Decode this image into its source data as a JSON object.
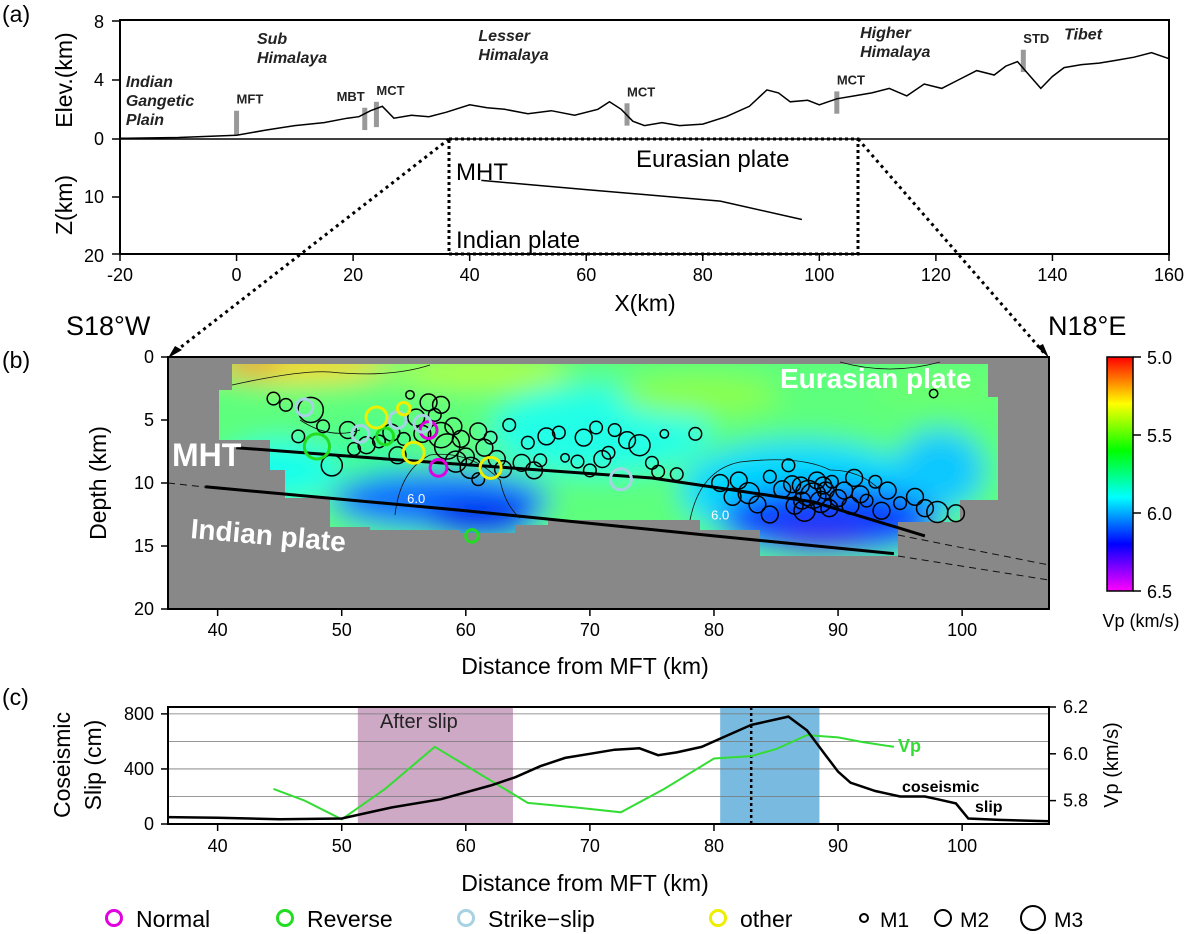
{
  "panel_labels": [
    "(a)",
    "(b)",
    "(c)"
  ],
  "direction": {
    "left": "S18°W",
    "right": "N18°E"
  },
  "chart_data": [
    {
      "type": "line",
      "panel": "(a)",
      "xlabel": "X(km)",
      "ylabel_top": "Elev.(km)",
      "ylabel_bottom": "Z(km)",
      "xlim": [
        -20,
        160
      ],
      "xticks": [
        -20,
        0,
        20,
        40,
        60,
        80,
        100,
        120,
        140,
        160
      ],
      "elev_ylim": [
        0,
        8
      ],
      "elev_yticks": [
        "8",
        "4",
        "0"
      ],
      "depth_ylim": [
        0,
        20
      ],
      "depth_yticks": [
        "10",
        "20"
      ],
      "regions": [
        {
          "lines": [
            "Indian",
            "Gangetic",
            "Plain"
          ],
          "x": -19,
          "elev": 3.5
        },
        {
          "lines": [
            "Sub",
            "Himalaya"
          ],
          "x": 3.5,
          "elev": 6.4
        },
        {
          "lines": [
            "Lesser",
            "Himalaya"
          ],
          "x": 41.5,
          "elev": 6.6
        },
        {
          "lines": [
            "Higher",
            "Himalaya"
          ],
          "x": 107,
          "elev": 6.8
        },
        {
          "lines": [
            "Tibet"
          ],
          "x": 142,
          "elev": 6.7
        }
      ],
      "faults": [
        {
          "label": "MFT",
          "x": 0,
          "base": 0.25,
          "top": 1.9
        },
        {
          "label": "MBT",
          "x": 22,
          "base": 0.6,
          "top": 2.1
        },
        {
          "label": "MCT",
          "x": 24,
          "base": 0.8,
          "top": 2.5
        },
        {
          "label": "MCT",
          "x": 67,
          "base": 0.9,
          "top": 2.4
        },
        {
          "label": "MCT",
          "x": 103,
          "base": 1.7,
          "top": 3.2
        },
        {
          "label": "STD",
          "x": 135,
          "base": 4.5,
          "top": 6.0
        }
      ],
      "elevation": {
        "x": [
          -20,
          -10,
          0,
          5,
          10,
          15,
          19,
          21,
          23,
          25,
          27,
          30,
          33,
          36,
          40,
          43,
          46,
          50,
          54,
          58,
          62,
          64,
          66,
          68,
          70,
          73,
          76,
          80,
          84,
          88,
          91,
          93,
          95,
          98,
          100,
          103,
          106,
          109,
          112,
          115,
          118,
          121,
          124,
          127,
          130,
          132,
          134,
          136,
          138,
          140,
          142,
          145,
          148,
          151,
          154,
          157,
          160
        ],
        "y": [
          0.05,
          0.1,
          0.25,
          0.6,
          0.9,
          1.1,
          1.4,
          1.5,
          1.9,
          2.2,
          1.4,
          1.6,
          1.5,
          1.8,
          2.3,
          2.1,
          2.0,
          1.7,
          1.9,
          1.6,
          2.0,
          2.5,
          2.0,
          1.2,
          0.9,
          1.1,
          0.9,
          1.0,
          1.5,
          2.2,
          3.3,
          3.1,
          2.5,
          2.6,
          2.3,
          2.7,
          2.9,
          3.1,
          3.4,
          2.9,
          3.7,
          3.4,
          4.0,
          4.6,
          4.3,
          4.9,
          5.2,
          4.3,
          3.4,
          4.2,
          4.8,
          5.0,
          5.1,
          5.3,
          5.5,
          5.8,
          5.4
        ]
      },
      "mht": {
        "label": "MHT",
        "x": [
          42,
          60,
          83,
          97
        ],
        "y": [
          7.2,
          8.8,
          10.8,
          14.0
        ]
      },
      "plate_labels": {
        "eurasian": "Eurasian plate",
        "indian": "Indian plate"
      },
      "zoom_box": {
        "x": [
          36.5,
          106.5
        ],
        "depth": [
          0,
          20
        ]
      }
    },
    {
      "type": "heatmap",
      "panel": "(b)",
      "xlabel": "Distance from MFT (km)",
      "ylabel": "Depth (km)",
      "xlim": [
        36,
        107
      ],
      "ylim": [
        0,
        20
      ],
      "xticks": [
        40,
        50,
        60,
        70,
        80,
        90,
        100
      ],
      "yticks": [
        0,
        5,
        10,
        15,
        20
      ],
      "colorbar": {
        "label": "Vp (km/s)",
        "min": 5.0,
        "max": 6.5,
        "ticks": [
          "5.0",
          "5.5",
          "6.0",
          "6.5"
        ],
        "colors": [
          "#ff0000",
          "#ffff00",
          "#00ff00",
          "#00ffff",
          "#0000ff",
          "#ff00ff"
        ]
      },
      "contour_labels": [
        {
          "text": "6.0",
          "x": 56,
          "y": 11.6
        },
        {
          "text": "6.0",
          "x": 80.5,
          "y": 12.9
        }
      ],
      "annotations": {
        "eurasian": "Eurasian plate",
        "mht": "MHT",
        "indian": "Indian plate"
      },
      "mht_line": {
        "x": [
          41.5,
          55,
          75,
          88,
          97
        ],
        "y": [
          7.2,
          8.2,
          9.6,
          11.5,
          14.2
        ]
      },
      "slab_line": {
        "x": [
          39,
          60,
          80,
          94.5
        ],
        "y": [
          10.3,
          12.2,
          14.2,
          15.6
        ]
      },
      "focal_mechanisms": [
        {
          "type": "Normal",
          "x": 57,
          "y": 5.8,
          "mag": 2
        },
        {
          "type": "Normal",
          "x": 57.8,
          "y": 8.8,
          "mag": 2
        },
        {
          "type": "Reverse",
          "x": 48,
          "y": 7.1,
          "mag": 3
        },
        {
          "type": "Reverse",
          "x": 53.5,
          "y": 6.3,
          "mag": 2
        },
        {
          "type": "Reverse",
          "x": 60.5,
          "y": 14.2,
          "mag": 1.5
        },
        {
          "type": "Strike-slip",
          "x": 51.5,
          "y": 6.1,
          "mag": 2
        },
        {
          "type": "Strike-slip",
          "x": 54.5,
          "y": 5.0,
          "mag": 2
        },
        {
          "type": "Strike-slip",
          "x": 56.5,
          "y": 5.3,
          "mag": 2
        },
        {
          "type": "Strike-slip",
          "x": 72.5,
          "y": 9.7,
          "mag": 2.5
        },
        {
          "type": "Strike-slip",
          "x": 47,
          "y": 4.0,
          "mag": 2
        },
        {
          "type": "other",
          "x": 52.8,
          "y": 4.8,
          "mag": 2.5
        },
        {
          "type": "other",
          "x": 55,
          "y": 4.1,
          "mag": 1.5
        },
        {
          "type": "other",
          "x": 55.8,
          "y": 7.6,
          "mag": 2.5
        },
        {
          "type": "other",
          "x": 62,
          "y": 8.8,
          "mag": 2.5
        }
      ],
      "earthquakes_m": [
        [
          44.5,
          3.3,
          1.5
        ],
        [
          45.5,
          3.8,
          1.5
        ],
        [
          46.5,
          6.3,
          1.5
        ],
        [
          47.5,
          4.2,
          3
        ],
        [
          48.5,
          5.5,
          1.5
        ],
        [
          49.2,
          8.6,
          2.5
        ],
        [
          50.5,
          5.8,
          2
        ],
        [
          51,
          7.3,
          1.5
        ],
        [
          52,
          7.0,
          2
        ],
        [
          53,
          6.7,
          1.5
        ],
        [
          54,
          6.0,
          2
        ],
        [
          54.5,
          7.8,
          2
        ],
        [
          55,
          6.5,
          1.5
        ],
        [
          55.5,
          3.0,
          1
        ],
        [
          56,
          4.8,
          2
        ],
        [
          56.5,
          6.1,
          2
        ],
        [
          57,
          3.6,
          2
        ],
        [
          57.5,
          4.6,
          1.5
        ],
        [
          58,
          3.8,
          2
        ],
        [
          58,
          6.2,
          3
        ],
        [
          58.5,
          7.1,
          3
        ],
        [
          59,
          5.5,
          2
        ],
        [
          59.2,
          8.3,
          2.5
        ],
        [
          59.6,
          6.5,
          2
        ],
        [
          60,
          7.9,
          2
        ],
        [
          60.4,
          8.8,
          2.5
        ],
        [
          61,
          5.9,
          2
        ],
        [
          61,
          9.7,
          1.5
        ],
        [
          61.5,
          7.2,
          2
        ],
        [
          62,
          6.4,
          1.5
        ],
        [
          62.5,
          8.1,
          2
        ],
        [
          63,
          8.9,
          2
        ],
        [
          63.5,
          5.4,
          1.5
        ],
        [
          64.5,
          8.4,
          2
        ],
        [
          65,
          6.8,
          1.5
        ],
        [
          65.5,
          9.0,
          2
        ],
        [
          66,
          8.2,
          1.5
        ],
        [
          66.5,
          6.3,
          2
        ],
        [
          67.5,
          6.0,
          1.5
        ],
        [
          68,
          8.0,
          1
        ],
        [
          69,
          8.3,
          1.5
        ],
        [
          69.5,
          6.4,
          2
        ],
        [
          70,
          9.0,
          1.5
        ],
        [
          70.5,
          5.6,
          1.5
        ],
        [
          71,
          8.1,
          2
        ],
        [
          71.5,
          7.6,
          1.5
        ],
        [
          72,
          5.8,
          1.5
        ],
        [
          73,
          6.6,
          2
        ],
        [
          74,
          7.0,
          2.5
        ],
        [
          75,
          8.4,
          1.5
        ],
        [
          75.5,
          9.1,
          1.5
        ],
        [
          76,
          6.1,
          1
        ],
        [
          77,
          9.3,
          1.5
        ],
        [
          78.5,
          6.1,
          1.5
        ],
        [
          80.5,
          10.0,
          2
        ],
        [
          81.5,
          11.1,
          2
        ],
        [
          82,
          9.8,
          2
        ],
        [
          82.8,
          10.8,
          2.5
        ],
        [
          83.5,
          11.7,
          2
        ],
        [
          84.5,
          12.5,
          2
        ],
        [
          84.5,
          9.5,
          1.5
        ],
        [
          85.5,
          10.5,
          2
        ],
        [
          86,
          8.6,
          1.5
        ],
        [
          86.5,
          11.8,
          2
        ],
        [
          87,
          10.2,
          2
        ],
        [
          87.3,
          12.2,
          2.5
        ],
        [
          87.6,
          10.8,
          3
        ],
        [
          88,
          11.0,
          3
        ],
        [
          88.3,
          9.8,
          2
        ],
        [
          88.6,
          11.5,
          2.5
        ],
        [
          89,
          10.6,
          2
        ],
        [
          89.3,
          12.0,
          2
        ],
        [
          89.5,
          9.9,
          1.5
        ],
        [
          90,
          11.2,
          2
        ],
        [
          90.5,
          10.6,
          2
        ],
        [
          91,
          11.8,
          2
        ],
        [
          91.3,
          9.6,
          2
        ],
        [
          91.8,
          10.9,
          2
        ],
        [
          92.3,
          11.4,
          1.5
        ],
        [
          93,
          9.9,
          1.5
        ],
        [
          93.5,
          12.2,
          2
        ],
        [
          94,
          10.6,
          2
        ],
        [
          95,
          11.6,
          1.5
        ],
        [
          96.2,
          11.1,
          2
        ],
        [
          97,
          12.0,
          2
        ],
        [
          98,
          12.3,
          2.5
        ],
        [
          99.5,
          12.4,
          2
        ],
        [
          97.7,
          2.9,
          1
        ],
        [
          86.3,
          10.1,
          2
        ],
        [
          87.1,
          11.4,
          2
        ],
        [
          88.8,
          10.2,
          2
        ]
      ],
      "legend": {
        "mechanisms": [
          {
            "label": "Normal",
            "color": "#e000e0"
          },
          {
            "label": "Reverse",
            "color": "#22dd22"
          },
          {
            "label": "Strike−slip",
            "color": "#a6d2e4"
          },
          {
            "label": "other",
            "color": "#eeee00"
          }
        ],
        "magnitudes": [
          {
            "label": "M1",
            "size": 1
          },
          {
            "label": "M2",
            "size": 2
          },
          {
            "label": "M3",
            "size": 3
          }
        ]
      }
    },
    {
      "type": "line",
      "panel": "(c)",
      "xlabel": "Distance from MFT (km)",
      "ylabel_left": "Coseismic Slip (cm)",
      "ylabel_left_lines": [
        "Coseismic",
        "Slip (cm)"
      ],
      "ylabel_right": "Vp (km/s)",
      "xlim": [
        36,
        107
      ],
      "xticks": [
        40,
        50,
        60,
        70,
        80,
        90,
        100
      ],
      "ylim_left": [
        0,
        850
      ],
      "yticks_left": [
        0,
        400,
        800
      ],
      "ylim_right": [
        5.7,
        6.2
      ],
      "yticks_right": [
        "5.8",
        "6.0",
        "6.2"
      ],
      "shaded": [
        {
          "label": "After slip",
          "x": [
            51.3,
            63.8
          ],
          "color": "#c8a0c0"
        },
        {
          "label": "",
          "x": [
            80.5,
            88.5
          ],
          "color": "#6ab4dd"
        }
      ],
      "dotted_line_x": 83,
      "gridlines_left": [
        200,
        400,
        600,
        800
      ],
      "series": [
        {
          "name": "coseismic slip",
          "name_lines": [
            "coseismic",
            "slip"
          ],
          "color": "#000000",
          "x": [
            36,
            40,
            45,
            50,
            54,
            58,
            62,
            64,
            66,
            68,
            70,
            72,
            74,
            75.5,
            77,
            79,
            81,
            83,
            85,
            86,
            87.5,
            89,
            90,
            91,
            93,
            95,
            97,
            98,
            99.5,
            100.5,
            103,
            107
          ],
          "y": [
            50,
            45,
            35,
            40,
            120,
            180,
            280,
            340,
            420,
            480,
            510,
            540,
            550,
            500,
            520,
            560,
            640,
            720,
            760,
            780,
            680,
            500,
            380,
            300,
            240,
            200,
            200,
            180,
            150,
            40,
            30,
            20
          ]
        },
        {
          "name": "Vp",
          "color": "#33dd33",
          "x": [
            44.5,
            47,
            50,
            53.5,
            57.5,
            60,
            65,
            69,
            72.5,
            76,
            80,
            83,
            85,
            87.5,
            90,
            92,
            94.5
          ],
          "y": [
            5.85,
            5.8,
            5.72,
            5.85,
            6.03,
            5.95,
            5.79,
            5.77,
            5.75,
            5.85,
            5.98,
            5.99,
            6.02,
            6.08,
            6.07,
            6.05,
            6.03
          ]
        }
      ]
    }
  ]
}
